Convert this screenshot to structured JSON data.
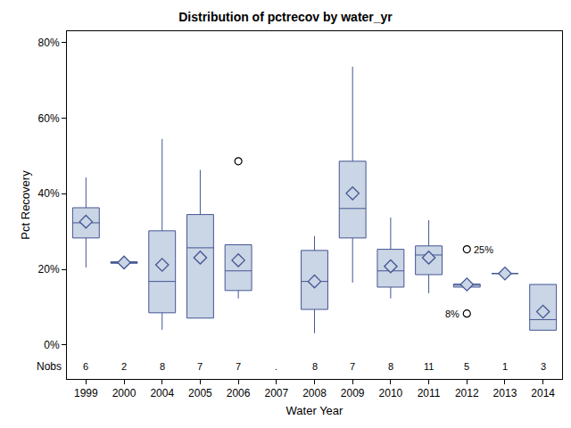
{
  "chart_data": {
    "type": "box",
    "title": "Distribution of pctrecov by water_yr",
    "x_label": "Water Year",
    "y_label": "Pct Recovery",
    "categories": [
      "1999",
      "2000",
      "2004",
      "2005",
      "2006",
      "2007",
      "2008",
      "2009",
      "2010",
      "2011",
      "2012",
      "2013",
      "2014"
    ],
    "q1": [
      28.3,
      21.6,
      8.5,
      7.1,
      14.4,
      null,
      9.4,
      28.3,
      15.3,
      18.6,
      15.3,
      18.9,
      3.9
    ],
    "median": [
      32.3,
      21.8,
      16.8,
      25.7,
      19.6,
      null,
      16.8,
      36.1,
      19.6,
      23.8,
      15.8,
      18.9,
      6.7
    ],
    "q3": [
      36.3,
      22.0,
      30.2,
      34.5,
      26.5,
      null,
      25.0,
      48.6,
      25.3,
      26.2,
      16.1,
      18.9,
      16.0
    ],
    "lower_whisker": [
      20.5,
      21.4,
      4.0,
      7.1,
      12.3,
      null,
      3.1,
      16.5,
      12.3,
      13.7,
      15.3,
      18.9,
      3.9
    ],
    "upper_whisker": [
      44.3,
      22.2,
      54.5,
      46.3,
      26.5,
      null,
      28.8,
      73.6,
      33.7,
      33.0,
      16.1,
      18.9,
      16.0
    ],
    "mean": [
      32.6,
      21.8,
      21.2,
      23.1,
      22.4,
      null,
      16.8,
      40.1,
      20.8,
      23.1,
      16.0,
      18.9,
      8.8
    ],
    "nobs": [
      6,
      2,
      8,
      7,
      7,
      null,
      8,
      7,
      8,
      11,
      5,
      1,
      3
    ],
    "nobs_label": "Nobs",
    "missing_label": ".",
    "outliers": [
      {
        "category": "2006",
        "value": 48.6
      },
      {
        "category": "2012",
        "value": 25.3,
        "label": "25%"
      },
      {
        "category": "2012",
        "value": 8.3,
        "label": "8%"
      }
    ],
    "ylim": [
      -9,
      83
    ],
    "yticks": [
      {
        "value": 0,
        "label": "0%"
      },
      {
        "value": 20,
        "label": "20%"
      },
      {
        "value": 40,
        "label": "40%"
      },
      {
        "value": 60,
        "label": "60%"
      },
      {
        "value": 80,
        "label": "80%"
      }
    ],
    "grid": false,
    "color": "#cad5e5",
    "marker": "diamond"
  }
}
